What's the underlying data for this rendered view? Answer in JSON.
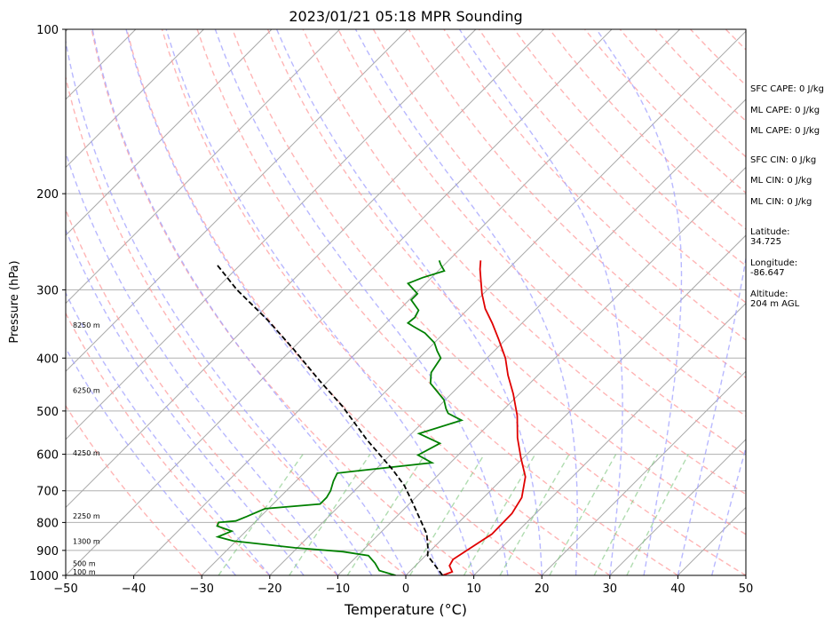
{
  "chart_data": {
    "type": "skew-t",
    "title": "2023/01/21 05:18 MPR Sounding",
    "xlabel": "Temperature (°C)",
    "ylabel": "Pressure (hPa)",
    "xlim": [
      -50,
      50
    ],
    "ylim": [
      1000,
      100
    ],
    "y_scale": "log",
    "grid": true,
    "x_ticks": [
      "−50",
      "−40",
      "−30",
      "−20",
      "−10",
      "0",
      "10",
      "20",
      "30",
      "40",
      "50"
    ],
    "y_ticks": [
      "100",
      "200",
      "300",
      "400",
      "500",
      "600",
      "700",
      "800",
      "900",
      "1000"
    ],
    "height_labels": [
      {
        "label": "100 m",
        "p": 985
      },
      {
        "label": "500 m",
        "p": 950
      },
      {
        "label": "1300 m",
        "p": 865
      },
      {
        "label": "2250 m",
        "p": 778
      },
      {
        "label": "4250 m",
        "p": 597
      },
      {
        "label": "6250 m",
        "p": 458
      },
      {
        "label": "8250 m",
        "p": 348
      }
    ],
    "series": [
      {
        "key": "temperature",
        "color": "#e00000",
        "points": [
          [
            5.4,
            1000
          ],
          [
            6.3,
            985
          ],
          [
            5.0,
            960
          ],
          [
            4.6,
            935
          ],
          [
            5.5,
            890
          ],
          [
            6.6,
            840
          ],
          [
            6.5,
            770
          ],
          [
            5.6,
            720
          ],
          [
            3.1,
            660
          ],
          [
            -0.3,
            610
          ],
          [
            -3.8,
            560
          ],
          [
            -7.1,
            510
          ],
          [
            -10.9,
            465
          ],
          [
            -14.4,
            430
          ],
          [
            -17.3,
            400
          ],
          [
            -21.0,
            370
          ],
          [
            -24.4,
            345
          ],
          [
            -27.5,
            325
          ],
          [
            -30.2,
            305
          ],
          [
            -32.1,
            290
          ],
          [
            -34.1,
            275
          ],
          [
            -35.3,
            265
          ]
        ]
      },
      {
        "key": "dewpoint",
        "color": "#008000",
        "points": [
          [
            -1.5,
            1000
          ],
          [
            -4.6,
            980
          ],
          [
            -6.3,
            950
          ],
          [
            -8.4,
            920
          ],
          [
            -12.7,
            905
          ],
          [
            -20.4,
            890
          ],
          [
            -30.4,
            865
          ],
          [
            -33.3,
            850
          ],
          [
            -32.1,
            830
          ],
          [
            -35.0,
            812
          ],
          [
            -35.3,
            800
          ],
          [
            -33.0,
            795
          ],
          [
            -32.0,
            780
          ],
          [
            -30.5,
            755
          ],
          [
            -23.1,
            740
          ],
          [
            -23.1,
            720
          ],
          [
            -23.5,
            700
          ],
          [
            -24.5,
            672
          ],
          [
            -25.1,
            650
          ],
          [
            -23.1,
            645
          ],
          [
            -12.7,
            622
          ],
          [
            -15.9,
            602
          ],
          [
            -14.4,
            573
          ],
          [
            -18.9,
            550
          ],
          [
            -14.6,
            520
          ],
          [
            -17.6,
            505
          ],
          [
            -18.6,
            495
          ],
          [
            -20.2,
            477
          ],
          [
            -24.6,
            445
          ],
          [
            -26.1,
            425
          ],
          [
            -26.8,
            400
          ],
          [
            -28.4,
            388
          ],
          [
            -30.0,
            375
          ],
          [
            -32.8,
            360
          ],
          [
            -35.5,
            350
          ],
          [
            -36.8,
            345
          ],
          [
            -36.6,
            337
          ],
          [
            -37.1,
            327
          ],
          [
            -39.7,
            313
          ],
          [
            -39.7,
            305
          ],
          [
            -42.6,
            292
          ],
          [
            -41.3,
            285
          ],
          [
            -39.1,
            277
          ],
          [
            -40.5,
            270
          ],
          [
            -41.4,
            265
          ]
        ]
      },
      {
        "key": "parcel",
        "color": "#000000",
        "points": [
          [
            5.4,
            1000
          ],
          [
            0.3,
            920
          ],
          [
            -0.6,
            895
          ],
          [
            -3.0,
            840
          ],
          [
            -6.1,
            790
          ],
          [
            -9.4,
            740
          ],
          [
            -13.4,
            685
          ],
          [
            -17.5,
            640
          ],
          [
            -25.6,
            565
          ],
          [
            -34.2,
            490
          ],
          [
            -41.3,
            440
          ],
          [
            -49.8,
            385
          ],
          [
            -58.0,
            340
          ],
          [
            -66.8,
            300
          ],
          [
            -73.4,
            270
          ]
        ]
      }
    ],
    "indices": {
      "sfc_cape": "SFC CAPE: 0 J/kg",
      "ml_cape": "ML CAPE: 0 J/kg",
      "ml_cape_2": "ML CAPE: 0 J/kg",
      "sfc_cin": "SFC CIN: 0 J/kg",
      "ml_cin": "ML CIN: 0 J/kg",
      "ml_cin_2": "ML CIN: 0 J/kg"
    },
    "location": {
      "latitude": "Latitude:\n34.725",
      "longitude": "Longitude:\n-86.647",
      "altitude": "Altitude:\n204 m AGL"
    }
  }
}
